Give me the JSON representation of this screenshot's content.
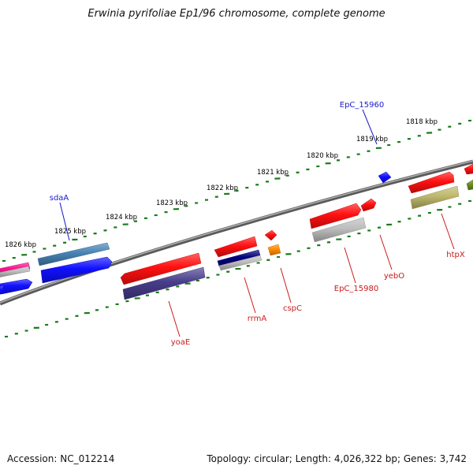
{
  "title": "Erwinia pyrifoliae Ep1/96 chromosome, complete genome",
  "footer": {
    "accession": "Accession: NC_012214",
    "summary": "Topology: circular; Length: 4,026,322 bp; Genes: 3,742"
  },
  "ticks": [
    {
      "label": "1826 kbp"
    },
    {
      "label": "1825 kbp"
    },
    {
      "label": "1824 kbp"
    },
    {
      "label": "1823 kbp"
    },
    {
      "label": "1822 kbp"
    },
    {
      "label": "1821 kbp"
    },
    {
      "label": "1820 kbp"
    },
    {
      "label": "1819 kbp"
    },
    {
      "label": "1818 kbp"
    }
  ],
  "gene_labels": {
    "sdaA": "sdaA",
    "EpC_15960": "EpC_15960",
    "yoaE": "yoaE",
    "rrmA": "rrmA",
    "cspC": "cspC",
    "EpC_15980": "EpC_15980",
    "yebO": "yebO",
    "htpX": "htpX"
  },
  "colors": {
    "backbone": "#808080",
    "tick": "#1a7a1a",
    "label_blue": "#1a1acc",
    "label_red": "#cc1a1a",
    "red": "#ff1010",
    "blue": "#1010ff",
    "steelblue": "#4682b4",
    "slateblue": "#483d8b",
    "navy": "#000080",
    "gray": "#bdbdbd",
    "orange": "#ff8c00",
    "olive": "#bdb76b",
    "darkolive": "#6b8e23",
    "pink": "#ff1493"
  }
}
